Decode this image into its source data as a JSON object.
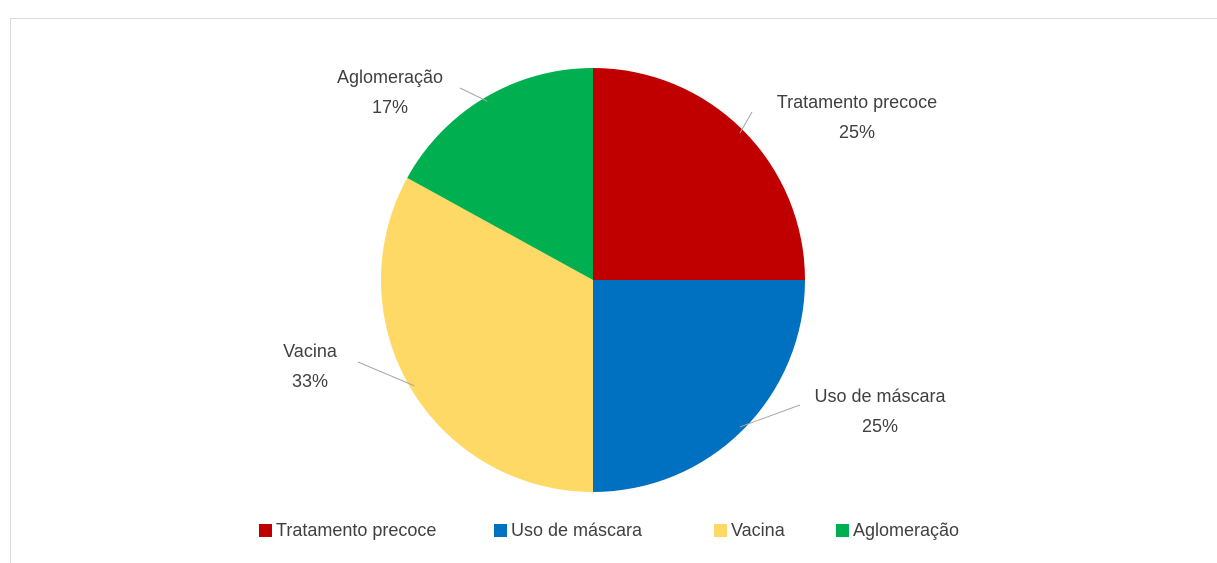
{
  "chart_data": {
    "type": "pie",
    "categories": [
      "Tratamento precoce",
      "Uso de máscara",
      "Vacina",
      "Aglomeração"
    ],
    "values": [
      25,
      25,
      33,
      17
    ],
    "value_labels": [
      "25%",
      "25%",
      "33%",
      "17%"
    ],
    "colors": [
      "#c00000",
      "#0070c0",
      "#ffd966",
      "#00b050"
    ],
    "legend": "bottom"
  }
}
